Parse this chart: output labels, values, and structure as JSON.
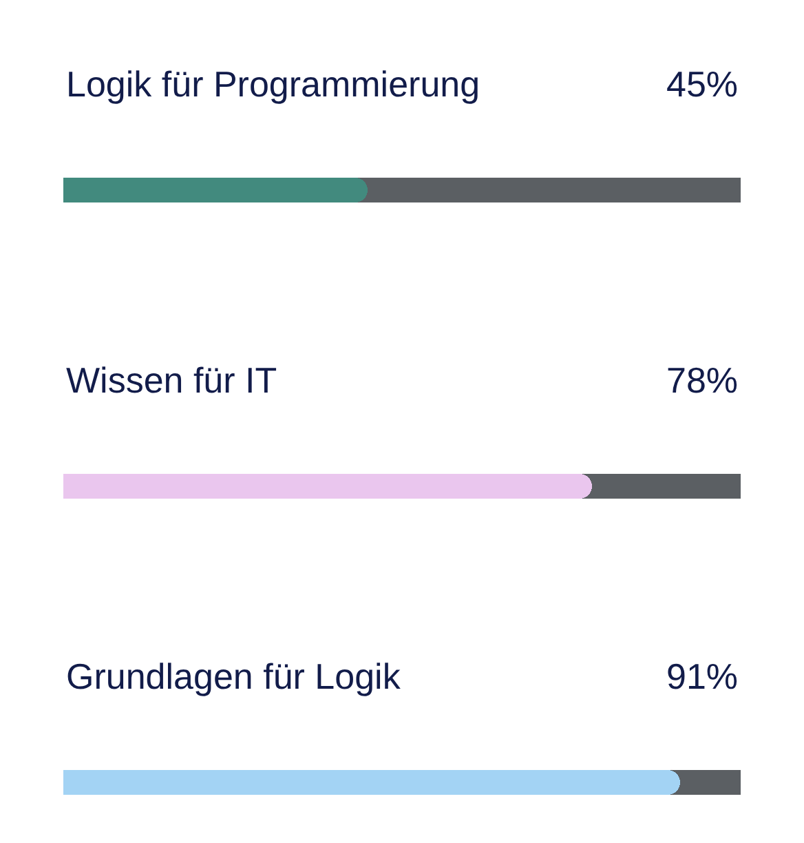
{
  "chart_data": {
    "type": "bar",
    "orientation": "horizontal",
    "categories": [
      "Logik für Programmierung",
      "Wissen für IT",
      "Grundlagen für Logik"
    ],
    "values": [
      45,
      78,
      91
    ],
    "value_labels": [
      "45%",
      "78%",
      "91%"
    ],
    "colors": [
      "#428a7e",
      "#eac6ee",
      "#a3d3f4"
    ],
    "xlim": [
      0,
      100
    ],
    "tick_labels": false,
    "grid": false,
    "legend": false
  }
}
